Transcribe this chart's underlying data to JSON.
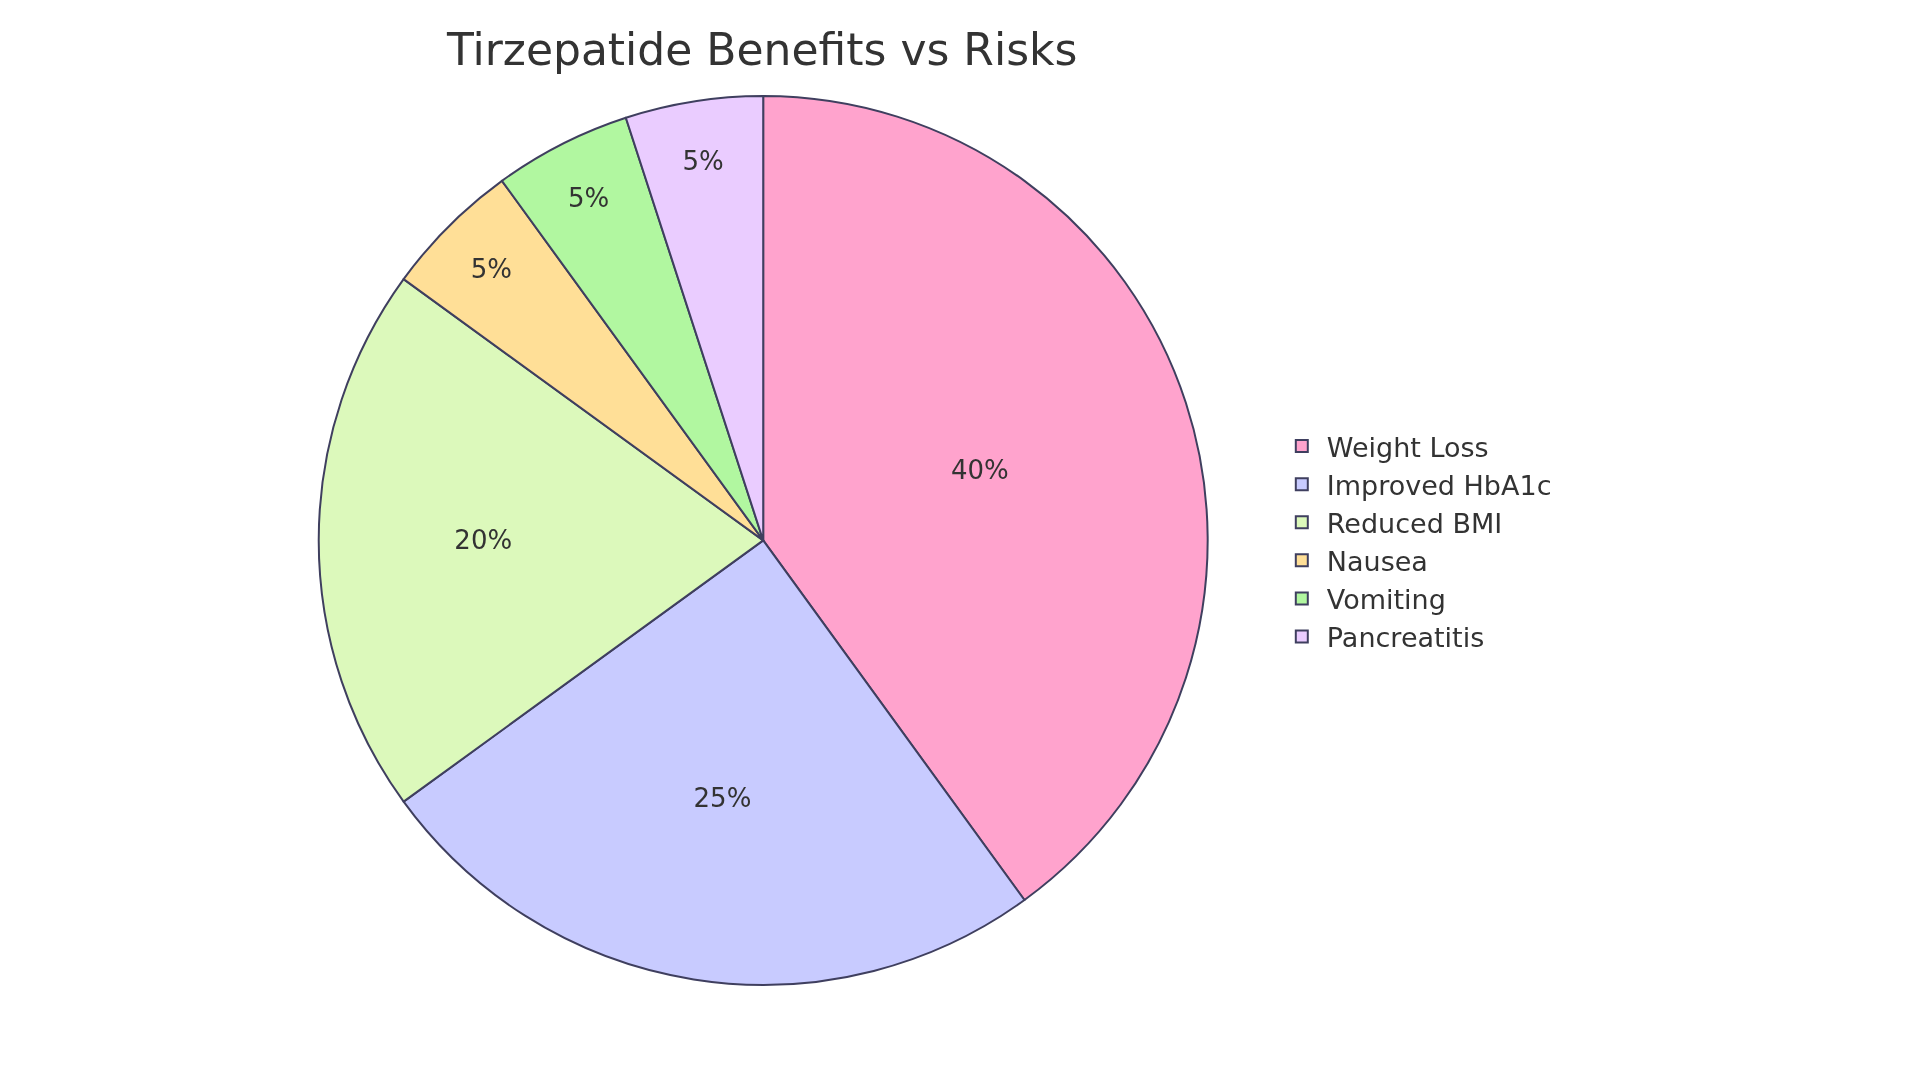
{
  "chart_data": {
    "type": "pie",
    "title": "Tirzepatide Benefits vs Risks",
    "categories": [
      "Weight Loss",
      "Improved HbA1c",
      "Reduced BMI",
      "Nausea",
      "Vomiting",
      "Pancreatitis"
    ],
    "values": [
      40,
      25,
      20,
      5,
      5,
      5
    ],
    "value_labels": [
      "40%",
      "25%",
      "20%",
      "5%",
      "5%",
      "5%"
    ],
    "colors": [
      "#ffa3cd",
      "#c8cbff",
      "#dcf9bb",
      "#ffdf97",
      "#b1f7a0",
      "#eaccff"
    ],
    "legend": "right"
  }
}
